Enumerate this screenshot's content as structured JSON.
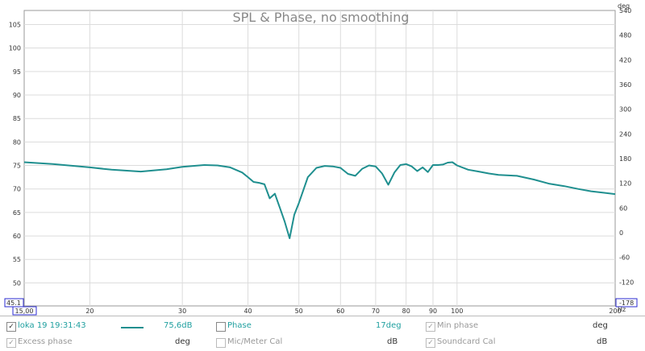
{
  "chart_data": {
    "type": "line",
    "title": "SPL & Phase, no smoothing",
    "x_scale": "log",
    "xlim": [
      15,
      200
    ],
    "ylim": [
      45.1,
      108
    ],
    "ylim_right": [
      -178,
      540
    ],
    "x_ticks": [
      {
        "label": "15,00",
        "value": 15,
        "boxed": true
      },
      {
        "label": "20",
        "value": 20
      },
      {
        "label": "30",
        "value": 30
      },
      {
        "label": "40",
        "value": 40
      },
      {
        "label": "50",
        "value": 50
      },
      {
        "label": "60",
        "value": 60
      },
      {
        "label": "70",
        "value": 70
      },
      {
        "label": "80",
        "value": 80
      },
      {
        "label": "90",
        "value": 90
      },
      {
        "label": "100",
        "value": 100
      },
      {
        "label": "200",
        "value": 200
      }
    ],
    "x_unit": "Hz",
    "y_ticks_left": [
      {
        "label": "105",
        "value": 105
      },
      {
        "label": "100",
        "value": 100
      },
      {
        "label": "95",
        "value": 95
      },
      {
        "label": "90",
        "value": 90
      },
      {
        "label": "85",
        "value": 85
      },
      {
        "label": "80",
        "value": 80
      },
      {
        "label": "75",
        "value": 75
      },
      {
        "label": "70",
        "value": 70
      },
      {
        "label": "65",
        "value": 65
      },
      {
        "label": "60",
        "value": 60
      },
      {
        "label": "55",
        "value": 55
      },
      {
        "label": "50",
        "value": 50
      },
      {
        "label": "45.1",
        "value": 45.1,
        "boxed": true
      }
    ],
    "y_ticks_right": [
      {
        "label": "540",
        "value": 540
      },
      {
        "label": "480",
        "value": 480
      },
      {
        "label": "420",
        "value": 420
      },
      {
        "label": "360",
        "value": 360
      },
      {
        "label": "300",
        "value": 300
      },
      {
        "label": "240",
        "value": 240
      },
      {
        "label": "180",
        "value": 180
      },
      {
        "label": "120",
        "value": 120
      },
      {
        "label": "60",
        "value": 60
      },
      {
        "label": "0",
        "value": 0
      },
      {
        "label": "-60",
        "value": -60
      },
      {
        "label": "-120",
        "value": -120
      },
      {
        "label": "-178",
        "value": -178,
        "boxed": true
      }
    ],
    "y_unit_right": "deg",
    "grid": true,
    "series": [
      {
        "name": "loka 19 19:31:43",
        "color": "#1f8f8f",
        "x": [
          15,
          17,
          20,
          22,
          25,
          28,
          30,
          33,
          35,
          37,
          39,
          40,
          41,
          42,
          43,
          44,
          45,
          46,
          47,
          48,
          49,
          50,
          52,
          54,
          56,
          58,
          60,
          62,
          64,
          66,
          68,
          70,
          72,
          74,
          76,
          78,
          80,
          82,
          84,
          86,
          88,
          90,
          92,
          94,
          96,
          98,
          100,
          105,
          110,
          115,
          120,
          130,
          140,
          150,
          160,
          170,
          180,
          190,
          200
        ],
        "y": [
          75.7,
          75.3,
          74.6,
          74.1,
          73.7,
          74.2,
          74.7,
          75.1,
          75.0,
          74.6,
          73.5,
          72.5,
          71.5,
          71.3,
          71.0,
          68.0,
          69.0,
          66.0,
          63.0,
          59.5,
          64.5,
          67.0,
          72.5,
          74.5,
          74.9,
          74.8,
          74.5,
          73.2,
          72.8,
          74.3,
          75.0,
          74.8,
          73.3,
          70.9,
          73.5,
          75.1,
          75.3,
          74.8,
          73.8,
          74.6,
          73.6,
          75.1,
          75.1,
          75.2,
          75.6,
          75.7,
          75.0,
          74.1,
          73.7,
          73.3,
          73.0,
          72.8,
          72.0,
          71.1,
          70.6,
          70.0,
          69.5,
          69.2,
          68.9
        ]
      }
    ]
  },
  "legend": {
    "measurement_label": "loka 19 19:31:43",
    "measurement_checked": true,
    "measurement_value": "75,6dB",
    "phase_label": "Phase",
    "phase_value": "17deg",
    "min_phase_label": "Min phase",
    "min_phase_unit": "deg",
    "excess_phase_label": "Excess phase",
    "excess_phase_unit": "deg",
    "mic_cal_label": "Mic/Meter Cal",
    "mic_cal_unit": "dB",
    "soundcard_cal_label": "Soundcard Cal",
    "soundcard_cal_unit": "dB"
  }
}
